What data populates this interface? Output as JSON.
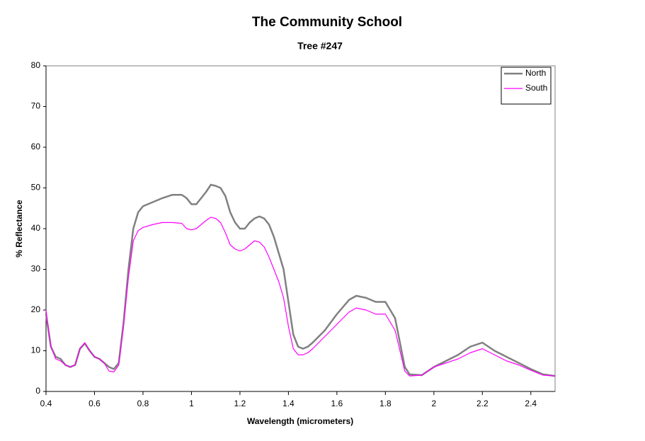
{
  "chart_data": {
    "type": "line",
    "title": "The Community School",
    "subtitle": "Tree #247",
    "x_label": "Wavelength (micrometers)",
    "y_label": "% Reflectance",
    "x": [
      0.4,
      0.42,
      0.44,
      0.46,
      0.48,
      0.5,
      0.52,
      0.54,
      0.56,
      0.58,
      0.6,
      0.62,
      0.64,
      0.66,
      0.68,
      0.7,
      0.72,
      0.74,
      0.76,
      0.78,
      0.8,
      0.84,
      0.88,
      0.92,
      0.96,
      0.98,
      1.0,
      1.02,
      1.04,
      1.06,
      1.08,
      1.1,
      1.12,
      1.14,
      1.16,
      1.18,
      1.2,
      1.22,
      1.24,
      1.26,
      1.28,
      1.3,
      1.32,
      1.34,
      1.36,
      1.38,
      1.4,
      1.42,
      1.44,
      1.46,
      1.48,
      1.5,
      1.55,
      1.6,
      1.65,
      1.68,
      1.72,
      1.76,
      1.8,
      1.84,
      1.86,
      1.88,
      1.9,
      1.95,
      2.0,
      2.05,
      2.1,
      2.15,
      2.2,
      2.25,
      2.3,
      2.35,
      2.4,
      2.45,
      2.5
    ],
    "series": [
      {
        "name": "North",
        "color": "#808080",
        "values": [
          19,
          11,
          8.5,
          8,
          6.5,
          6,
          6.5,
          10.5,
          11.8,
          10,
          8.5,
          8,
          7,
          6,
          5.5,
          7,
          17,
          30,
          40,
          44,
          45.5,
          46.5,
          47.5,
          48.3,
          48.3,
          47.5,
          46,
          46,
          47.5,
          49,
          50.8,
          50.5,
          50,
          48,
          44,
          41.5,
          40,
          40,
          41.5,
          42.5,
          43,
          42.5,
          41,
          38,
          34,
          30,
          22,
          14,
          11,
          10.5,
          11,
          12,
          15,
          19,
          22.5,
          23.5,
          23,
          22,
          22,
          18,
          12,
          6,
          4.2,
          4,
          6,
          7.5,
          9,
          11,
          12,
          10,
          8.5,
          7,
          5.5,
          4.2,
          3.8
        ]
      },
      {
        "name": "South",
        "color": "#ff00ff",
        "values": [
          20,
          11,
          8,
          7.5,
          6.5,
          6,
          6.5,
          10.5,
          12,
          10,
          8.5,
          8,
          7,
          5,
          4.8,
          6.5,
          16,
          28,
          37,
          39.5,
          40.3,
          41,
          41.5,
          41.5,
          41.3,
          40,
          39.7,
          40,
          41,
          42,
          42.8,
          42.5,
          41.5,
          39,
          36,
          35,
          34.5,
          35,
          36,
          37,
          36.7,
          35.5,
          33,
          30,
          27,
          23,
          16,
          10.5,
          9,
          9,
          9.5,
          10.5,
          13.5,
          16.5,
          19.5,
          20.5,
          20,
          19,
          19,
          15,
          10,
          5,
          3.8,
          4,
          6,
          7,
          8,
          9.5,
          10.5,
          9,
          7.5,
          6.5,
          5.2,
          4,
          3.8
        ]
      }
    ],
    "xlim": [
      0.4,
      2.5
    ],
    "xticks": [
      0.4,
      0.6,
      0.8,
      1,
      1.2,
      1.4,
      1.6,
      1.8,
      2,
      2.2,
      2.4
    ],
    "ylim": [
      0,
      80
    ],
    "yticks": [
      0,
      10,
      20,
      30,
      40,
      50,
      60,
      70,
      80
    ],
    "grid": false,
    "legend": "top-right"
  }
}
